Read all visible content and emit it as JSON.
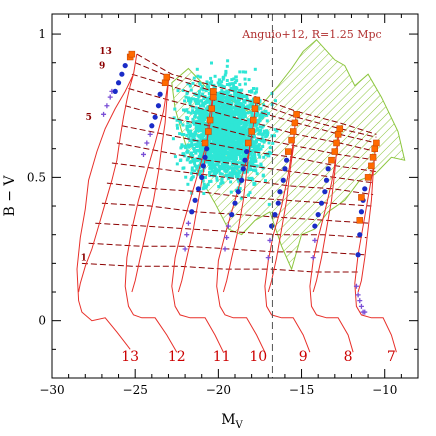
{
  "chart_data": {
    "type": "scatter",
    "title": "",
    "annotation": "Anguio+12, R=1.25 Mpc",
    "xlabel": "M",
    "xlabel_sub": "V",
    "ylabel": "B − V",
    "xlim": [
      -30,
      -8
    ],
    "ylim": [
      -0.2,
      1.07
    ],
    "x_ticks": [
      -30,
      -25,
      -20,
      -15,
      -10
    ],
    "y_ticks": [
      0,
      0.5,
      1
    ],
    "x_tick_labels": [
      "−30",
      "−25",
      "−20",
      "−15",
      "−10"
    ],
    "y_tick_labels": [
      "0",
      "0.5",
      "1"
    ],
    "vertical_line_x": -16.75,
    "grid": false,
    "colors": {
      "track": "#e8302a",
      "isochrone": "#8b0000",
      "scatter": "#2ee6d6",
      "hatch": "#8dc63f",
      "blue_marker": "#1a2bc7",
      "purple_marker": "#7a4fd6",
      "orange_marker": "#ff6a00"
    },
    "track_labels": [
      {
        "text": "13",
        "x": -25.3,
        "y": -0.14
      },
      {
        "text": "12",
        "x": -22.5,
        "y": -0.14
      },
      {
        "text": "11",
        "x": -19.8,
        "y": -0.14
      },
      {
        "text": "10",
        "x": -17.6,
        "y": -0.14
      },
      {
        "text": "9",
        "x": -14.9,
        "y": -0.14
      },
      {
        "text": "8",
        "x": -12.2,
        "y": -0.14
      },
      {
        "text": "7",
        "x": -9.6,
        "y": -0.14
      }
    ],
    "isochrone_labels": [
      {
        "text": "13",
        "x": -26.4,
        "y": 0.93
      },
      {
        "text": "9",
        "x": -26.8,
        "y": 0.88
      },
      {
        "text": "5",
        "x": -27.6,
        "y": 0.7
      },
      {
        "text": "1",
        "x": -27.9,
        "y": 0.21
      }
    ],
    "tracks": [
      {
        "label": "13",
        "x": [
          -28.4,
          -28.3,
          -28.0,
          -27.6,
          -27.2,
          -26.8,
          -26.4,
          -26.1,
          -25.9,
          -25.7,
          -25.5,
          -25.3,
          -25.1,
          -24.9,
          -25.1,
          -25.6,
          -26.2,
          -26.8,
          -27.3,
          -27.8,
          -28.0,
          -28.3,
          -28.5,
          -28.4,
          -28.2,
          -27.6,
          -26.8,
          -26.1,
          -25.3
        ],
        "y": [
          0.1,
          0.13,
          0.19,
          0.25,
          0.33,
          0.41,
          0.49,
          0.56,
          0.64,
          0.71,
          0.77,
          0.82,
          0.86,
          0.93,
          0.86,
          0.8,
          0.74,
          0.67,
          0.59,
          0.49,
          0.39,
          0.29,
          0.18,
          0.07,
          0.03,
          0.0,
          0.01,
          -0.04,
          -0.1
        ]
      },
      {
        "label": "12",
        "x": [
          -25.2,
          -25.0,
          -24.7,
          -24.3,
          -23.9,
          -23.6,
          -23.4,
          -23.2,
          -23.1,
          -23.0,
          -23.3,
          -23.8,
          -24.3,
          -24.8,
          -25.2,
          -25.5,
          -25.6,
          -25.4,
          -25.1,
          -24.6,
          -23.8,
          -23.1,
          -22.5
        ],
        "y": [
          0.1,
          0.14,
          0.22,
          0.32,
          0.42,
          0.52,
          0.61,
          0.69,
          0.77,
          0.84,
          0.73,
          0.62,
          0.52,
          0.42,
          0.32,
          0.22,
          0.12,
          0.05,
          0.02,
          0.01,
          0.01,
          -0.05,
          -0.11
        ]
      },
      {
        "label": "11",
        "x": [
          -22.4,
          -22.2,
          -21.9,
          -21.5,
          -21.2,
          -20.9,
          -20.7,
          -20.6,
          -20.4,
          -20.3,
          -20.4,
          -20.7,
          -21.2,
          -21.7,
          -22.2,
          -22.6,
          -22.8,
          -22.6,
          -22.3,
          -21.7,
          -20.8,
          -20.2,
          -19.7
        ],
        "y": [
          0.1,
          0.14,
          0.22,
          0.32,
          0.42,
          0.52,
          0.61,
          0.69,
          0.76,
          0.81,
          0.72,
          0.62,
          0.52,
          0.42,
          0.32,
          0.22,
          0.12,
          0.05,
          0.02,
          0.01,
          0.01,
          -0.05,
          -0.11
        ]
      },
      {
        "label": "10",
        "x": [
          -19.7,
          -19.5,
          -19.2,
          -18.8,
          -18.5,
          -18.3,
          -18.1,
          -17.9,
          -17.8,
          -17.7,
          -17.9,
          -18.2,
          -18.7,
          -19.2,
          -19.6,
          -20.0,
          -20.1,
          -19.9,
          -19.6,
          -19.1,
          -18.3,
          -17.7,
          -17.2
        ],
        "y": [
          0.1,
          0.14,
          0.22,
          0.32,
          0.42,
          0.52,
          0.61,
          0.68,
          0.74,
          0.78,
          0.68,
          0.58,
          0.48,
          0.38,
          0.3,
          0.21,
          0.12,
          0.05,
          0.02,
          0.01,
          0.01,
          -0.05,
          -0.11
        ]
      },
      {
        "label": "9",
        "x": [
          -17.0,
          -16.8,
          -16.5,
          -16.2,
          -15.9,
          -15.7,
          -15.5,
          -15.4,
          -15.3,
          -15.5,
          -15.8,
          -16.2,
          -16.7,
          -17.0,
          -17.2,
          -17.1,
          -16.8,
          -16.2,
          -15.5,
          -14.9,
          -14.5
        ],
        "y": [
          0.1,
          0.14,
          0.22,
          0.32,
          0.42,
          0.52,
          0.6,
          0.68,
          0.73,
          0.62,
          0.51,
          0.4,
          0.3,
          0.21,
          0.12,
          0.05,
          0.02,
          0.01,
          0.01,
          -0.05,
          -0.11
        ]
      },
      {
        "label": "8",
        "x": [
          -14.3,
          -14.1,
          -13.8,
          -13.5,
          -13.2,
          -13.0,
          -12.9,
          -12.8,
          -12.7,
          -12.9,
          -13.2,
          -13.6,
          -14.0,
          -14.3,
          -14.5,
          -14.4,
          -14.1,
          -13.5,
          -12.8,
          -12.2,
          -11.9
        ],
        "y": [
          0.1,
          0.14,
          0.22,
          0.32,
          0.42,
          0.52,
          0.59,
          0.65,
          0.68,
          0.58,
          0.48,
          0.38,
          0.29,
          0.21,
          0.12,
          0.05,
          0.02,
          0.01,
          0.01,
          -0.05,
          -0.11
        ]
      },
      {
        "label": "7",
        "x": [
          -11.6,
          -11.4,
          -11.2,
          -11.0,
          -10.8,
          -10.7,
          -10.6,
          -10.5,
          -10.7,
          -11.0,
          -11.3,
          -11.6,
          -11.8,
          -11.7,
          -11.4,
          -10.8,
          -10.1,
          -9.6,
          -9.3
        ],
        "y": [
          0.1,
          0.14,
          0.22,
          0.32,
          0.42,
          0.51,
          0.58,
          0.63,
          0.53,
          0.43,
          0.33,
          0.23,
          0.13,
          0.05,
          0.02,
          0.01,
          0.01,
          -0.05,
          -0.11
        ]
      }
    ],
    "isochrones": [
      {
        "x": [
          -28.2,
          -25.2,
          -22.4,
          -19.7,
          -16.9,
          -14.2,
          -11.5
        ],
        "y": [
          0.2,
          0.19,
          0.19,
          0.18,
          0.18,
          0.17,
          0.17
        ]
      },
      {
        "x": [
          -27.8,
          -24.7,
          -22.0,
          -19.3,
          -16.6,
          -13.9,
          -11.2
        ],
        "y": [
          0.27,
          0.26,
          0.26,
          0.25,
          0.24,
          0.24,
          0.23
        ]
      },
      {
        "x": [
          -27.4,
          -24.4,
          -21.7,
          -19.0,
          -16.4,
          -13.7,
          -11.1
        ],
        "y": [
          0.34,
          0.33,
          0.32,
          0.31,
          0.3,
          0.3,
          0.29
        ]
      },
      {
        "x": [
          -27.0,
          -24.1,
          -21.4,
          -18.7,
          -16.1,
          -13.5,
          -10.9
        ],
        "y": [
          0.41,
          0.4,
          0.38,
          0.37,
          0.36,
          0.35,
          0.34
        ]
      },
      {
        "x": [
          -26.7,
          -23.8,
          -21.1,
          -18.4,
          -15.9,
          -13.3,
          -10.8
        ],
        "y": [
          0.48,
          0.46,
          0.45,
          0.43,
          0.42,
          0.41,
          0.4
        ]
      },
      {
        "x": [
          -26.4,
          -23.6,
          -20.9,
          -18.2,
          -15.7,
          -13.1,
          -10.7
        ],
        "y": [
          0.55,
          0.53,
          0.51,
          0.49,
          0.47,
          0.46,
          0.44
        ]
      },
      {
        "x": [
          -26.1,
          -23.4,
          -20.7,
          -18.1,
          -15.6,
          -13.0,
          -10.6
        ],
        "y": [
          0.62,
          0.59,
          0.56,
          0.54,
          0.52,
          0.5,
          0.48
        ]
      },
      {
        "x": [
          -25.8,
          -23.2,
          -20.6,
          -18.0,
          -15.5,
          -12.9,
          -10.5
        ],
        "y": [
          0.68,
          0.65,
          0.62,
          0.59,
          0.57,
          0.54,
          0.52
        ]
      },
      {
        "x": [
          -25.6,
          -23.1,
          -20.5,
          -17.9,
          -15.4,
          -12.8,
          -10.5
        ],
        "y": [
          0.75,
          0.71,
          0.68,
          0.64,
          0.61,
          0.58,
          0.56
        ]
      },
      {
        "x": [
          -25.4,
          -23.0,
          -20.4,
          -17.8,
          -15.3,
          -12.7,
          -10.5
        ],
        "y": [
          0.81,
          0.77,
          0.73,
          0.69,
          0.65,
          0.62,
          0.59
        ]
      },
      {
        "x": [
          -25.2,
          -22.9,
          -20.3,
          -17.7,
          -15.3,
          -12.7,
          -10.5
        ],
        "y": [
          0.86,
          0.82,
          0.77,
          0.73,
          0.69,
          0.65,
          0.62
        ]
      },
      {
        "x": [
          -25.0,
          -22.9,
          -20.3,
          -17.7,
          -15.3,
          -12.7,
          -10.5
        ],
        "y": [
          0.9,
          0.85,
          0.8,
          0.76,
          0.71,
          0.67,
          0.64
        ]
      },
      {
        "x": [
          -24.9,
          -22.8,
          -20.3,
          -17.7,
          -15.3,
          -12.7,
          -10.5
        ],
        "y": [
          0.93,
          0.86,
          0.82,
          0.78,
          0.73,
          0.69,
          0.65
        ]
      }
    ],
    "hatched_region": {
      "x": [
        -22.8,
        -21.8,
        -20.5,
        -19.5,
        -18.2,
        -17.3,
        -16.4,
        -15.6,
        -14.9,
        -14.1,
        -13.0,
        -12.4,
        -11.8,
        -11.0,
        -10.2,
        -9.2,
        -8.8,
        -9.6,
        -10.6,
        -11.5,
        -12.4,
        -13.4,
        -14.2,
        -15.0,
        -15.6,
        -16.2,
        -16.9,
        -17.8,
        -18.6,
        -19.4,
        -20.2,
        -21.0,
        -21.9,
        -22.6
      ],
      "y": [
        0.83,
        0.88,
        0.8,
        0.78,
        0.73,
        0.76,
        0.82,
        0.88,
        0.94,
        0.98,
        0.91,
        0.89,
        0.82,
        0.86,
        0.78,
        0.66,
        0.56,
        0.57,
        0.51,
        0.49,
        0.42,
        0.38,
        0.32,
        0.3,
        0.18,
        0.26,
        0.38,
        0.35,
        0.3,
        0.32,
        0.41,
        0.49,
        0.6,
        0.74
      ]
    },
    "scatter_cloud": {
      "center_x": -19.6,
      "spread_x": 1.9,
      "center_y": 0.66,
      "spread_y": 0.14,
      "n_points": 2200,
      "x_range": [
        -23.8,
        -16.4
      ],
      "y_range": [
        0.18,
        1.01
      ]
    },
    "orange_markers": [
      {
        "x": [
          -25.3,
          -25.2
        ],
        "y": [
          0.92,
          0.93
        ]
      },
      {
        "x": [
          -23.2,
          -23.1
        ],
        "y": [
          0.83,
          0.85
        ]
      },
      {
        "x": [
          -20.8,
          -20.6,
          -20.5,
          -20.4,
          -20.3,
          -20.3
        ],
        "y": [
          0.62,
          0.66,
          0.7,
          0.74,
          0.78,
          0.8
        ]
      },
      {
        "x": [
          -18.2,
          -18.0,
          -17.9,
          -17.8,
          -17.7
        ],
        "y": [
          0.62,
          0.66,
          0.7,
          0.74,
          0.77
        ]
      },
      {
        "x": [
          -15.8,
          -15.6,
          -15.5,
          -15.4,
          -15.3
        ],
        "y": [
          0.59,
          0.63,
          0.66,
          0.69,
          0.72
        ]
      },
      {
        "x": [
          -13.2,
          -13.0,
          -12.9,
          -12.8,
          -12.7
        ],
        "y": [
          0.56,
          0.59,
          0.62,
          0.65,
          0.67
        ]
      },
      {
        "x": [
          -11.0,
          -10.8,
          -10.7,
          -10.6,
          -10.5,
          -11.4,
          -11.5
        ],
        "y": [
          0.5,
          0.54,
          0.57,
          0.6,
          0.62,
          0.43,
          0.35
        ]
      }
    ],
    "blue_markers": [
      {
        "x": [
          -26.2,
          -26.0,
          -25.8,
          -25.6
        ],
        "y": [
          0.8,
          0.83,
          0.86,
          0.89
        ]
      },
      {
        "x": [
          -24.0,
          -23.8,
          -23.6,
          -23.5
        ],
        "y": [
          0.68,
          0.71,
          0.75,
          0.79
        ]
      },
      {
        "x": [
          -21.6,
          -21.4,
          -21.2,
          -21.0,
          -20.9,
          -20.8,
          -20.7
        ],
        "y": [
          0.38,
          0.42,
          0.46,
          0.5,
          0.54,
          0.57,
          0.6
        ]
      },
      {
        "x": [
          -19.2,
          -19.0,
          -18.8,
          -18.6,
          -18.5,
          -18.4,
          -18.3
        ],
        "y": [
          0.37,
          0.41,
          0.45,
          0.49,
          0.53,
          0.56,
          0.59
        ]
      },
      {
        "x": [
          -16.8,
          -16.6,
          -16.4,
          -16.3,
          -16.1,
          -16.0,
          -15.9
        ],
        "y": [
          0.33,
          0.37,
          0.41,
          0.45,
          0.49,
          0.53,
          0.56
        ]
      },
      {
        "x": [
          -14.2,
          -14.0,
          -13.8,
          -13.6,
          -13.5,
          -13.4
        ],
        "y": [
          0.33,
          0.37,
          0.41,
          0.45,
          0.49,
          0.53
        ]
      },
      {
        "x": [
          -11.6,
          -11.5,
          -11.4,
          -11.3,
          -11.2
        ],
        "y": [
          0.23,
          0.3,
          0.38,
          0.42,
          0.46
        ]
      }
    ],
    "purple_markers": [
      {
        "x": [
          -26.9,
          -26.7,
          -26.5,
          -26.4
        ],
        "y": [
          0.72,
          0.75,
          0.78,
          0.8
        ]
      },
      {
        "x": [
          -24.5,
          -24.3,
          -24.1
        ],
        "y": [
          0.58,
          0.62,
          0.65
        ]
      },
      {
        "x": [
          -22.0,
          -21.9,
          -21.8
        ],
        "y": [
          0.25,
          0.3,
          0.34
        ]
      },
      {
        "x": [
          -19.6,
          -19.5,
          -19.4
        ],
        "y": [
          0.25,
          0.29,
          0.33
        ]
      },
      {
        "x": [
          -17.0,
          -16.9
        ],
        "y": [
          0.22,
          0.28
        ]
      },
      {
        "x": [
          -14.3,
          -14.2
        ],
        "y": [
          0.22,
          0.28
        ]
      },
      {
        "x": [
          -11.7,
          -11.6,
          -11.5,
          -11.4,
          -11.3,
          -11.2
        ],
        "y": [
          0.12,
          0.09,
          0.07,
          0.05,
          0.03,
          0.03
        ]
      }
    ]
  }
}
